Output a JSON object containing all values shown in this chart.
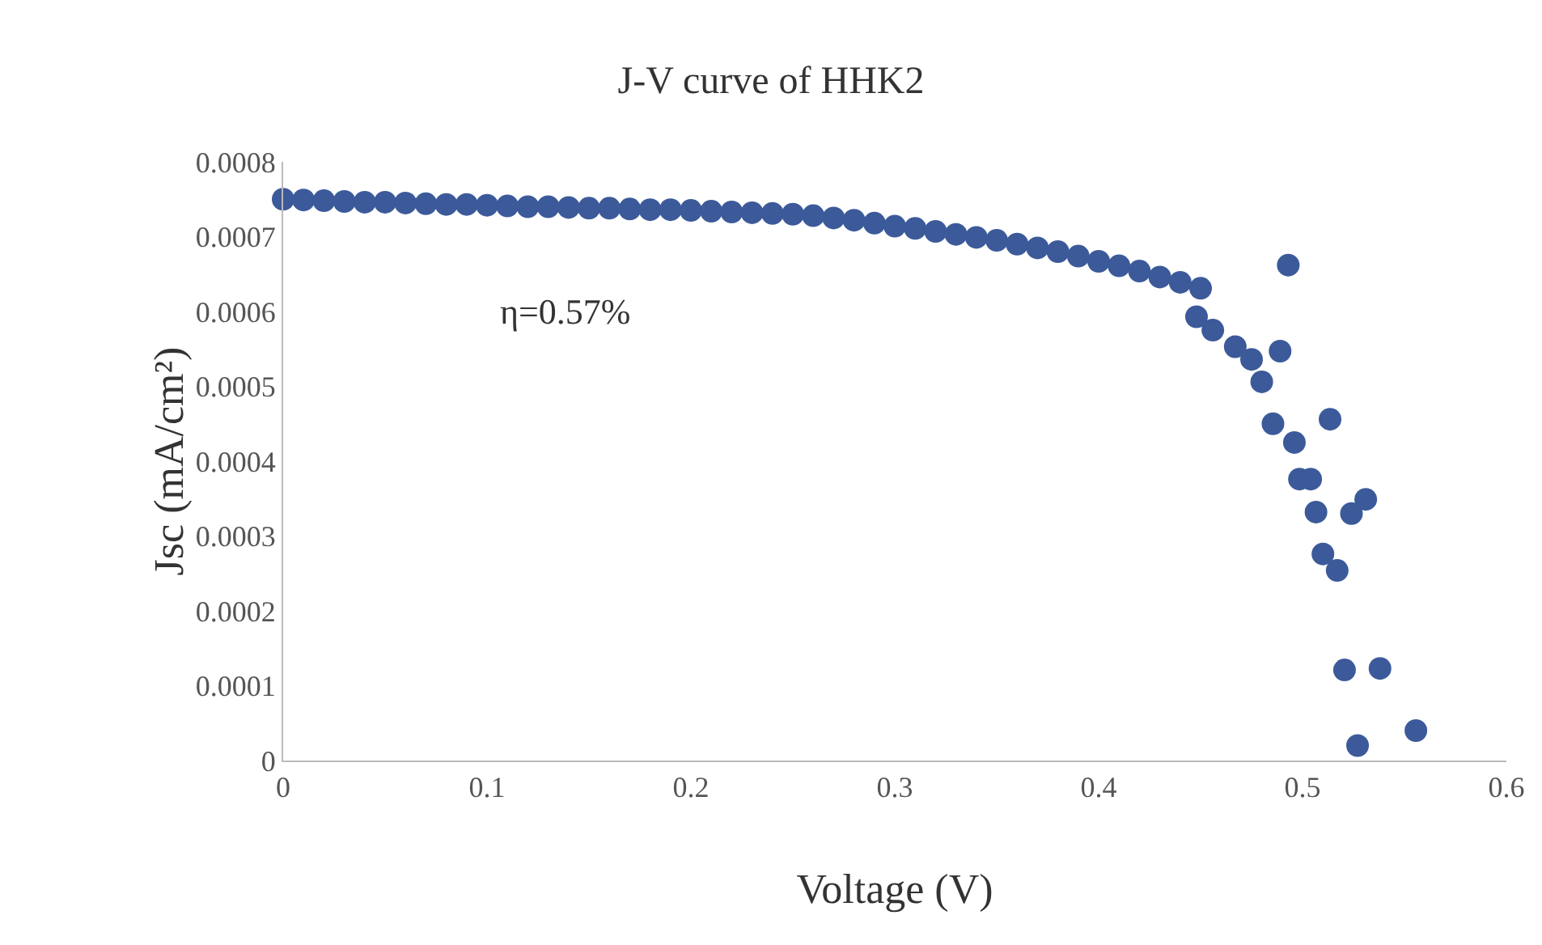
{
  "chart_data": {
    "type": "scatter",
    "title": "J-V curve of HHK2",
    "xlabel": "Voltage (V)",
    "ylabel": "Jsc (mA/cm²)",
    "annotations": [
      "η=0.57%"
    ],
    "xlim": [
      0,
      0.6
    ],
    "xticks": [
      0,
      0.1,
      0.2,
      0.3,
      0.4,
      0.5,
      0.6
    ],
    "ylim": [
      0,
      0.0008
    ],
    "yticks": [
      0,
      0.0001,
      0.0002,
      0.0003,
      0.0004,
      0.0005,
      0.0006,
      0.0007,
      0.0008
    ],
    "grid": false,
    "marker": "circle",
    "series": [
      {
        "color": "#3c5a9a",
        "x": [
          0,
          0.01,
          0.02,
          0.03,
          0.04,
          0.05,
          0.06,
          0.07,
          0.08,
          0.09,
          0.1,
          0.11,
          0.12,
          0.13,
          0.14,
          0.15,
          0.16,
          0.17,
          0.18,
          0.19,
          0.2,
          0.21,
          0.22,
          0.23,
          0.24,
          0.25,
          0.26,
          0.27,
          0.28,
          0.29,
          0.3,
          0.31,
          0.32,
          0.33,
          0.34,
          0.35,
          0.36,
          0.37,
          0.38,
          0.39,
          0.4,
          0.41,
          0.42,
          0.43,
          0.44,
          0.45,
          0.448,
          0.456,
          0.467,
          0.475,
          0.48,
          0.4855,
          0.489,
          0.493,
          0.496,
          0.4985,
          0.504,
          0.5066,
          0.51,
          0.5135,
          0.517,
          0.5206,
          0.524,
          0.527,
          0.531,
          0.538,
          0.5556
        ],
        "values": [
          0.00075,
          0.000749,
          0.000748,
          0.000747,
          0.000746,
          0.000746,
          0.000745,
          0.000744,
          0.000743,
          0.000743,
          0.000742,
          0.000741,
          0.00074,
          0.00074,
          0.000739,
          0.000738,
          0.000738,
          0.000737,
          0.000736,
          0.000736,
          0.000735,
          0.000734,
          0.000733,
          0.000732,
          0.000731,
          0.00073,
          0.000728,
          0.000725,
          0.000722,
          0.000718,
          0.000714,
          0.000711,
          0.000707,
          0.000703,
          0.000699,
          0.000695,
          0.00069,
          0.000685,
          0.00068,
          0.000674,
          0.000667,
          0.000661,
          0.000654,
          0.000646,
          0.000639,
          0.000631,
          0.000593,
          0.000575,
          0.000553,
          0.000536,
          0.000506,
          0.00045,
          0.000547,
          0.000662,
          0.000425,
          0.000376,
          0.000376,
          0.000332,
          0.000276,
          0.000456,
          0.000254,
          0.000121,
          0.00033,
          2e-05,
          0.000349,
          0.000123,
          4e-05
        ]
      }
    ]
  }
}
